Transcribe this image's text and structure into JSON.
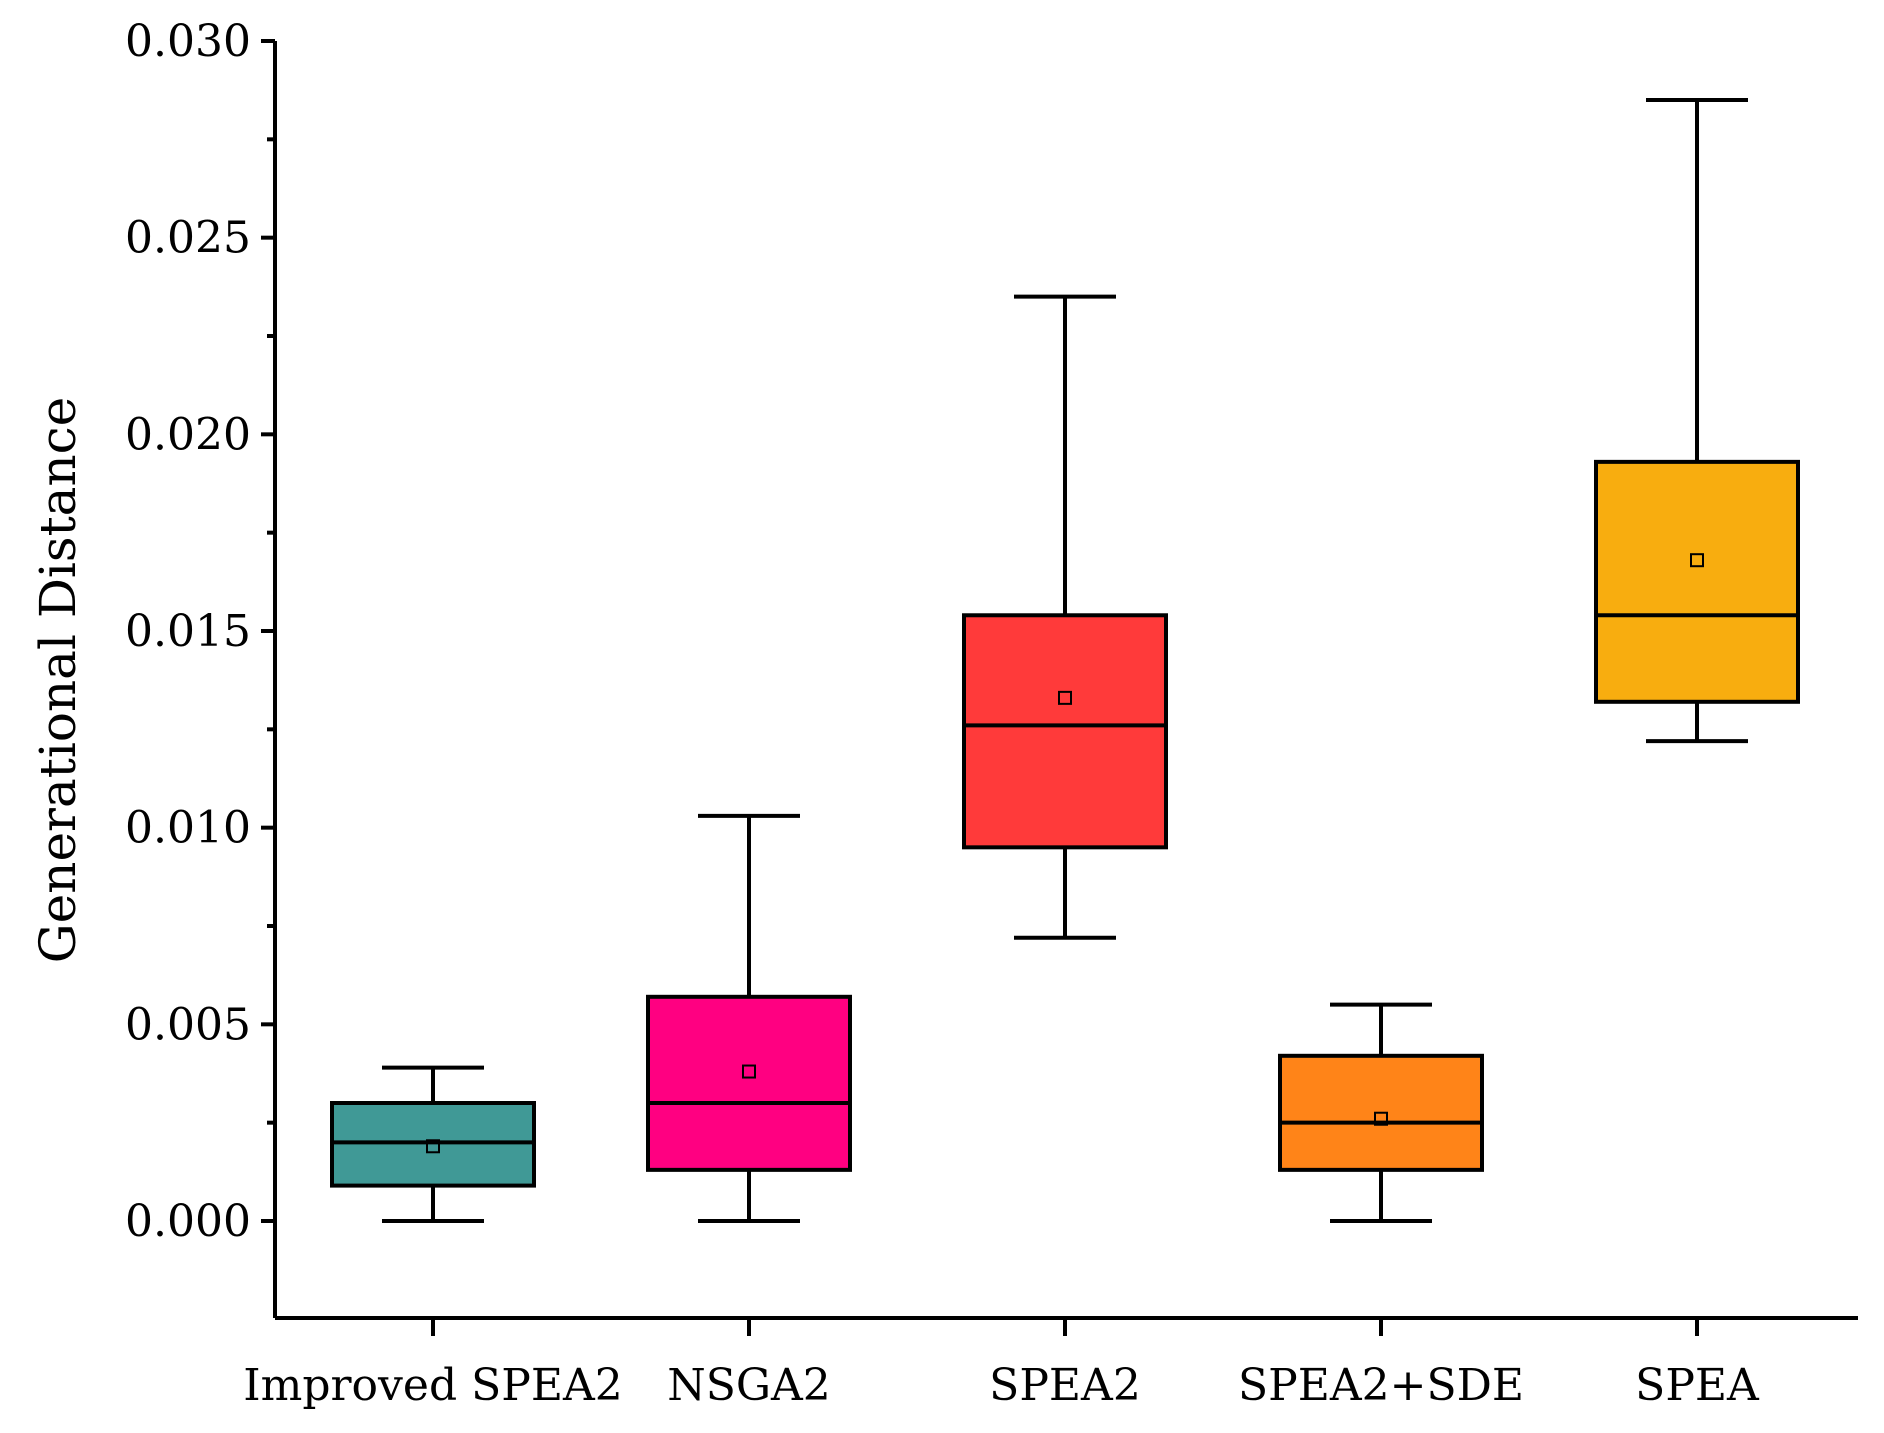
{
  "chart_data": {
    "type": "box",
    "title": "",
    "xlabel": "",
    "ylabel": "Generational Distance",
    "ylim": [
      -0.0025,
      0.03
    ],
    "yticks": [
      "0.000",
      "0.005",
      "0.010",
      "0.015",
      "0.020",
      "0.025",
      "0.030"
    ],
    "ytick_values": [
      0,
      0.005,
      0.01,
      0.015,
      0.02,
      0.025,
      0.03
    ],
    "minor_step": 0.0025,
    "grid": false,
    "categories": [
      "Improved SPEA2",
      "NSGA2",
      "SPEA2",
      "SPEA2+SDE",
      "SPEA"
    ],
    "series": [
      {
        "name": "Improved SPEA2",
        "color": "#409996",
        "min": 0.0,
        "q1": 0.0009,
        "median": 0.002,
        "q3": 0.003,
        "max": 0.0039,
        "mean": 0.0019
      },
      {
        "name": "NSGA2",
        "color": "#FF0081",
        "min": 0.0,
        "q1": 0.0013,
        "median": 0.003,
        "q3": 0.0057,
        "max": 0.0103,
        "mean": 0.0038
      },
      {
        "name": "SPEA2",
        "color": "#FF3A3A",
        "min": 0.0072,
        "q1": 0.0095,
        "median": 0.0126,
        "q3": 0.0154,
        "max": 0.0235,
        "mean": 0.0133
      },
      {
        "name": "SPEA2+SDE",
        "color": "#FF8418",
        "min": 0.0,
        "q1": 0.0013,
        "median": 0.0025,
        "q3": 0.0042,
        "max": 0.0055,
        "mean": 0.0026
      },
      {
        "name": "SPEA",
        "color": "#F8AD0F",
        "min": 0.0122,
        "q1": 0.0132,
        "median": 0.0154,
        "q3": 0.0193,
        "max": 0.0285,
        "mean": 0.0168
      }
    ]
  }
}
